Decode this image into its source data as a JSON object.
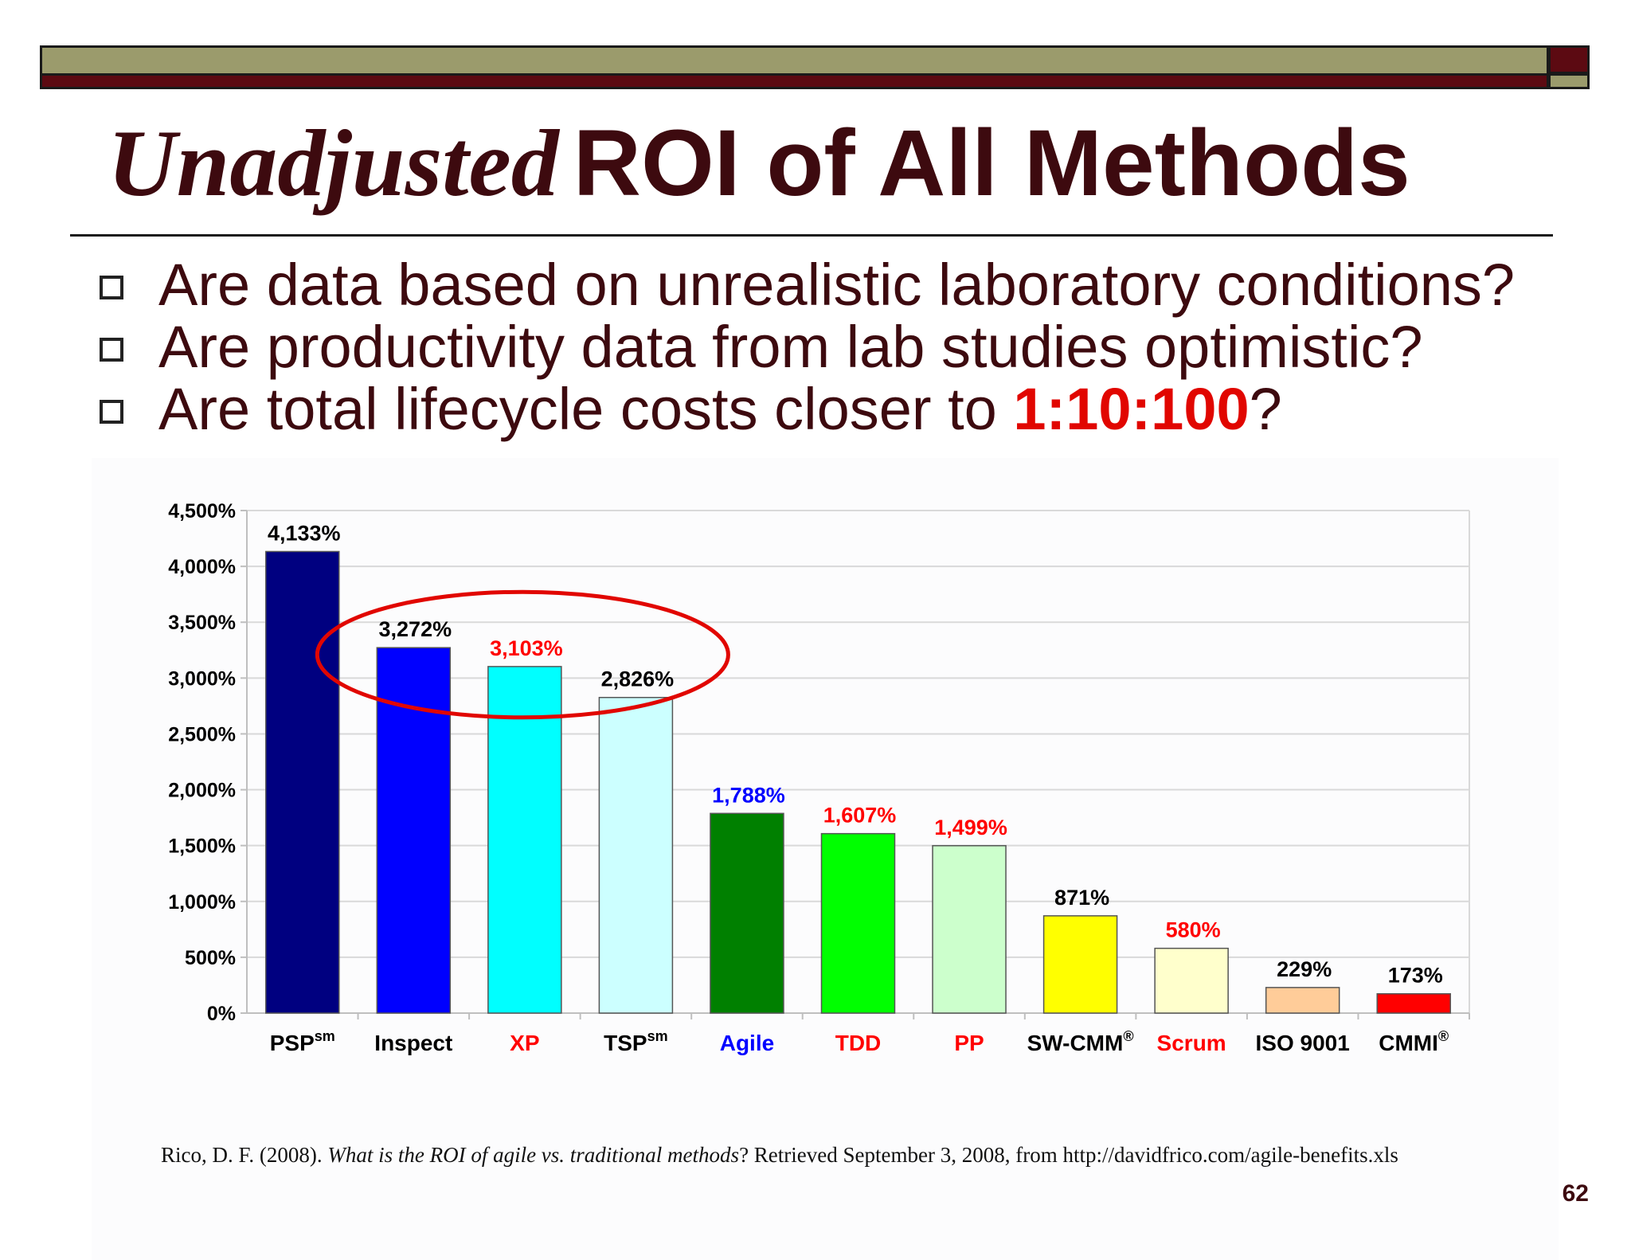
{
  "slide": {
    "title_italic": "Unadjusted",
    "title_rest": "ROI of All Methods",
    "bullets": [
      {
        "text": "Are data based on unrealistic laboratory conditions?"
      },
      {
        "text": "Are productivity data from lab studies optimistic?"
      },
      {
        "text_before": "Are total lifecycle costs closer to ",
        "highlight": "1:10:100",
        "text_after": "?"
      }
    ],
    "source_prefix": "Rico, D. F. (2008). ",
    "source_title": "What is the ROI of agile vs. traditional methods",
    "source_suffix": "? Retrieved September 3, 2008, from http://davidfrico.com/agile-benefits.xls",
    "page_number": "62"
  },
  "chart_data": {
    "type": "bar",
    "title": "",
    "xlabel": "",
    "ylabel": "",
    "ylim": [
      0,
      4500
    ],
    "y_ticks": [
      "0%",
      "500%",
      "1,000%",
      "1,500%",
      "2,000%",
      "2,500%",
      "3,000%",
      "3,500%",
      "4,000%",
      "4,500%"
    ],
    "categories": [
      "PSP",
      "Inspect",
      "XP",
      "TSP",
      "Agile",
      "TDD",
      "PP",
      "SW-CMM",
      "Scrum",
      "ISO 9001",
      "CMMI"
    ],
    "category_superscripts": [
      "sm",
      "",
      "",
      "sm",
      "",
      "",
      "",
      "®",
      "",
      "",
      "®"
    ],
    "category_label_colors": [
      "#000000",
      "#000000",
      "#ff0000",
      "#000000",
      "#0000ff",
      "#ff0000",
      "#ff0000",
      "#000000",
      "#ff0000",
      "#000000",
      "#000000"
    ],
    "values": [
      4133,
      3272,
      3103,
      2826,
      1788,
      1607,
      1499,
      871,
      580,
      229,
      173
    ],
    "value_labels": [
      "4,133%",
      "3,272%",
      "3,103%",
      "2,826%",
      "1,788%",
      "1,607%",
      "1,499%",
      "871%",
      "580%",
      "229%",
      "173%"
    ],
    "value_label_colors": [
      "#000000",
      "#000000",
      "#ff0000",
      "#000000",
      "#0000ff",
      "#ff0000",
      "#ff0000",
      "#000000",
      "#ff0000",
      "#000000",
      "#000000"
    ],
    "bar_colors": [
      "#000080",
      "#0000ff",
      "#00ffff",
      "#ccffff",
      "#008000",
      "#00ff00",
      "#ccffcc",
      "#ffff00",
      "#ffffcc",
      "#ffcc99",
      "#ff0000"
    ],
    "highlight_ellipse_categories": [
      "Inspect",
      "XP",
      "TSP"
    ],
    "grid": true,
    "legend": "none"
  }
}
